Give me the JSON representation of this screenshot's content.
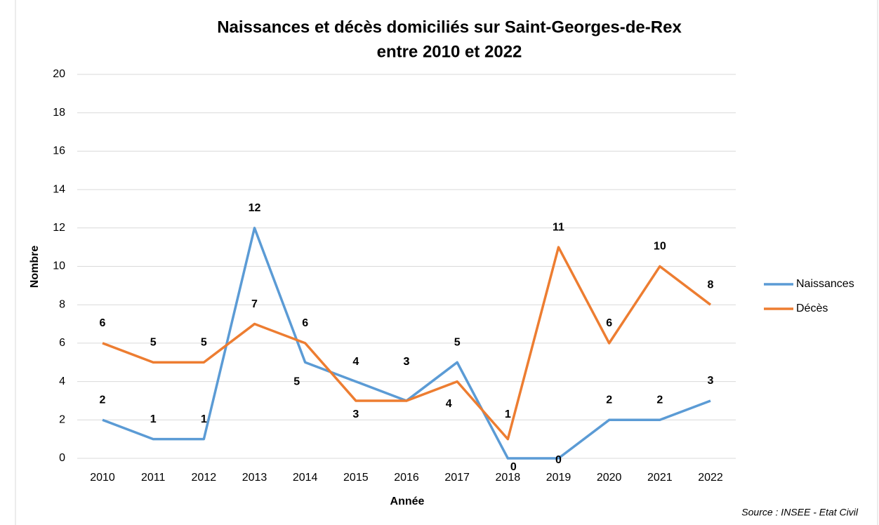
{
  "chart_data": {
    "type": "line",
    "title": [
      "Naissances et décès domiciliés sur Saint-Georges-de-Rex",
      "entre 2010 et 2022"
    ],
    "x_label": "Année",
    "y_label": "Nombre",
    "source": "Source : INSEE - Etat Civil",
    "categories": [
      "2010",
      "2011",
      "2012",
      "2013",
      "2014",
      "2015",
      "2016",
      "2017",
      "2018",
      "2019",
      "2020",
      "2021",
      "2022"
    ],
    "series": [
      {
        "name": "Naissances",
        "color": "#5b9bd5",
        "values": [
          2,
          1,
          1,
          12,
          5,
          4,
          3,
          5,
          0,
          0,
          2,
          2,
          3
        ]
      },
      {
        "name": "Décès",
        "color": "#ed7d31",
        "values": [
          6,
          5,
          5,
          7,
          6,
          3,
          3,
          4,
          1,
          11,
          6,
          10,
          8
        ]
      }
    ],
    "ylim": [
      0,
      20
    ],
    "yticks": [
      0,
      2,
      4,
      6,
      8,
      10,
      12,
      14,
      16,
      18,
      20
    ],
    "grid": true,
    "legend": "right"
  }
}
